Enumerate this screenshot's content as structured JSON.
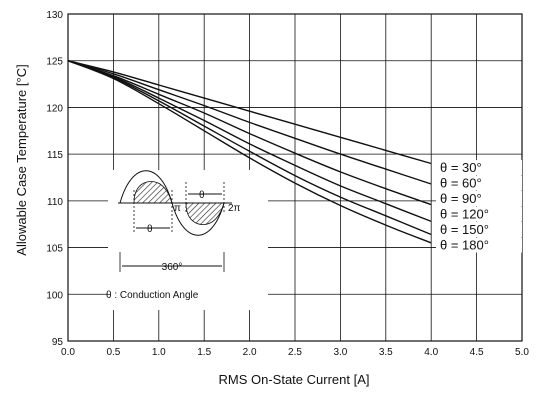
{
  "chart_data": {
    "type": "line",
    "xlabel": "RMS On-State Current [A]",
    "ylabel": "Allowable Case Temperature [°C]",
    "xlim": [
      0,
      5
    ],
    "ylim": [
      95,
      130
    ],
    "x_ticks": [
      0,
      0.5,
      1,
      1.5,
      2,
      2.5,
      3,
      3.5,
      4,
      4.5,
      5
    ],
    "x_tick_labels": [
      "0.0",
      "0.5",
      "1.0",
      "1.5",
      "2.0",
      "2.5",
      "3.0",
      "3.5",
      "4.0",
      "4.5",
      "5.0"
    ],
    "y_ticks": [
      95,
      100,
      105,
      110,
      115,
      120,
      125,
      130
    ],
    "y_tick_labels": [
      "95",
      "100",
      "105",
      "110",
      "115",
      "120",
      "125",
      "130"
    ],
    "grid": true,
    "legend_position": "right",
    "line_color": "#111111",
    "series": [
      {
        "name": "θ = 30°",
        "x": [
          0,
          0.5,
          1,
          1.5,
          2,
          2.5,
          3,
          3.5,
          4
        ],
        "y": [
          125,
          123.8,
          122.4,
          121.0,
          119.6,
          118.2,
          116.8,
          115.4,
          114.0
        ]
      },
      {
        "name": "θ = 60°",
        "x": [
          0,
          0.5,
          1,
          1.5,
          2,
          2.5,
          3,
          3.5,
          4
        ],
        "y": [
          125,
          123.6,
          121.9,
          120.2,
          118.4,
          116.7,
          115.0,
          113.4,
          111.8
        ]
      },
      {
        "name": "θ = 90°",
        "x": [
          0,
          0.5,
          1,
          1.5,
          2,
          2.5,
          3,
          3.5,
          4
        ],
        "y": [
          125,
          123.4,
          121.4,
          119.4,
          117.2,
          115.1,
          113.1,
          111.3,
          109.6
        ]
      },
      {
        "name": "θ = 120°",
        "x": [
          0,
          0.5,
          1,
          1.5,
          2,
          2.5,
          3,
          3.5,
          4
        ],
        "y": [
          125,
          123.3,
          121.0,
          118.6,
          116.1,
          113.8,
          111.6,
          109.7,
          107.8
        ]
      },
      {
        "name": "θ = 150°",
        "x": [
          0,
          0.5,
          1,
          1.5,
          2,
          2.5,
          3,
          3.5,
          4
        ],
        "y": [
          125,
          123.2,
          120.7,
          118.0,
          115.3,
          112.7,
          110.4,
          108.4,
          106.4
        ]
      },
      {
        "name": "θ = 180°",
        "x": [
          0,
          0.5,
          1,
          1.5,
          2,
          2.5,
          3,
          3.5,
          4
        ],
        "y": [
          125,
          123.1,
          120.4,
          117.5,
          114.6,
          111.9,
          109.5,
          107.4,
          105.5
        ]
      }
    ],
    "inset": {
      "pi_label": "π",
      "two_pi_label": "2π",
      "theta_label": "θ",
      "period_label": "360°",
      "caption": "θ : Conduction Angle"
    }
  }
}
